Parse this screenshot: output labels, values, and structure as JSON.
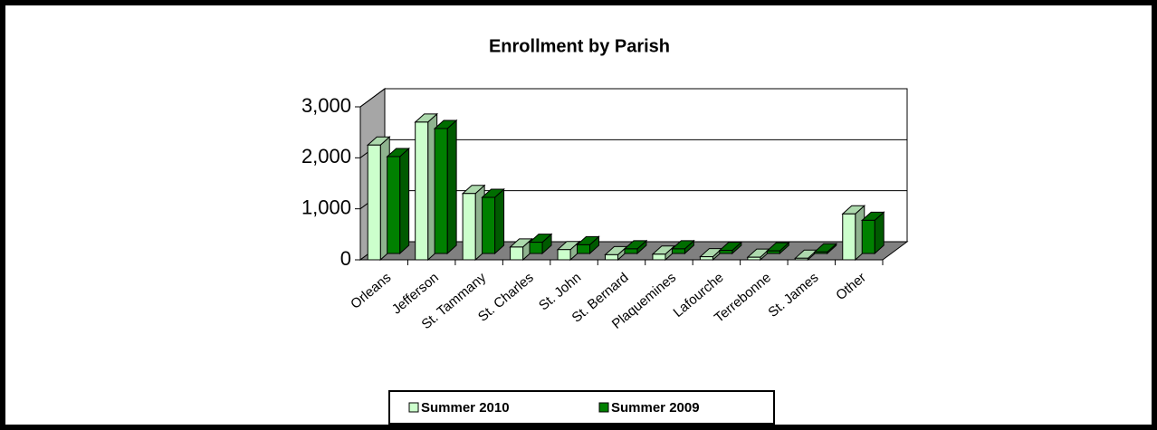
{
  "chart_data": {
    "type": "bar3d",
    "title": "Enrollment by Parish",
    "categories": [
      "Orleans",
      "Jefferson",
      "St. Tammany",
      "St. Charles",
      "St. John",
      "St. Bernard",
      "Plaquemines",
      "Lafourche",
      "Terrebonne",
      "St. James",
      "Other"
    ],
    "series": [
      {
        "name": "Summer 2010",
        "color": "#ccffcc",
        "values": [
          2250,
          2700,
          1300,
          250,
          200,
          100,
          110,
          60,
          50,
          30,
          900
        ]
      },
      {
        "name": "Summer 2009",
        "color": "#008000",
        "values": [
          1900,
          2450,
          1100,
          220,
          170,
          90,
          90,
          60,
          50,
          30,
          650
        ]
      }
    ],
    "ylim": [
      0,
      3000
    ],
    "yticks": [
      0,
      {
        "value": 1000,
        "label": "1,000"
      },
      {
        "value": 2000,
        "label": "2,000"
      },
      {
        "value": 3000,
        "label": "3,000"
      }
    ],
    "grid": true,
    "legend": "bottom"
  }
}
